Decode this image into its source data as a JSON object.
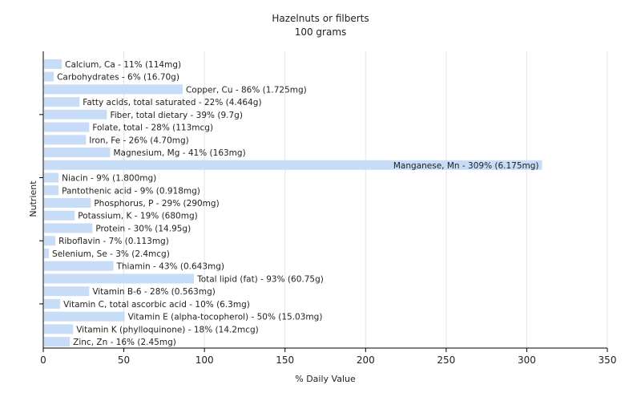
{
  "chart_data": {
    "type": "bar",
    "orientation": "horizontal",
    "title": "Hazelnuts or filberts",
    "subtitle": "100 grams",
    "xlabel": "% Daily Value",
    "ylabel": "Nutrient",
    "xlim": [
      0,
      350
    ],
    "xticks": [
      0,
      50,
      100,
      150,
      200,
      250,
      300,
      350
    ],
    "grid": true,
    "bar_color": "#c6dcf7",
    "categories": [
      "Calcium, Ca",
      "Carbohydrates",
      "Copper, Cu",
      "Fatty acids, total saturated",
      "Fiber, total dietary",
      "Folate, total",
      "Iron, Fe",
      "Magnesium, Mg",
      "Manganese, Mn",
      "Niacin",
      "Pantothenic acid",
      "Phosphorus, P",
      "Potassium, K",
      "Protein",
      "Riboflavin",
      "Selenium, Se",
      "Thiamin",
      "Total lipid (fat)",
      "Vitamin B-6",
      "Vitamin C, total ascorbic acid",
      "Vitamin E (alpha-tocopherol)",
      "Vitamin K (phylloquinone)",
      "Zinc, Zn"
    ],
    "values": [
      11,
      6,
      86,
      22,
      39,
      28,
      26,
      41,
      309,
      9,
      9,
      29,
      19,
      30,
      7,
      3,
      43,
      93,
      28,
      10,
      50,
      18,
      16
    ],
    "labels": [
      "Calcium, Ca - 11% (114mg)",
      "Carbohydrates - 6% (16.70g)",
      "Copper, Cu - 86% (1.725mg)",
      "Fatty acids, total saturated - 22% (4.464g)",
      "Fiber, total dietary - 39% (9.7g)",
      "Folate, total - 28% (113mcg)",
      "Iron, Fe - 26% (4.70mg)",
      "Magnesium, Mg - 41% (163mg)",
      "Manganese, Mn - 309% (6.175mg)",
      "Niacin - 9% (1.800mg)",
      "Pantothenic acid - 9% (0.918mg)",
      "Phosphorus, P - 29% (290mg)",
      "Potassium, K - 19% (680mg)",
      "Protein - 30% (14.95g)",
      "Riboflavin - 7% (0.113mg)",
      "Selenium, Se - 3% (2.4mcg)",
      "Thiamin - 43% (0.643mg)",
      "Total lipid (fat) - 93% (60.75g)",
      "Vitamin B-6 - 28% (0.563mg)",
      "Vitamin C, total ascorbic acid - 10% (6.3mg)",
      "Vitamin E (alpha-tocopherol) - 50% (15.03mg)",
      "Vitamin K (phylloquinone) - 18% (14.2mcg)",
      "Zinc, Zn - 16% (2.45mg)"
    ]
  }
}
